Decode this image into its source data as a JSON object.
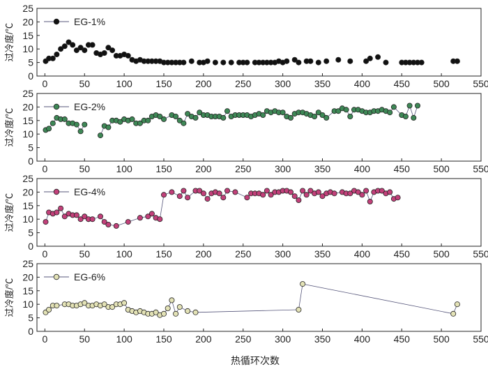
{
  "figure": {
    "xlabel": "热循环次数"
  },
  "chart_data": [
    {
      "type": "scatter",
      "legend": "EG-1%",
      "marker_color": "#111111",
      "line": false,
      "ylabel": "过冷度/℃",
      "xlim": [
        -10,
        550
      ],
      "ylim": [
        0,
        25
      ],
      "xticks": [
        0,
        50,
        100,
        150,
        200,
        250,
        300,
        350,
        400,
        450,
        500,
        550
      ],
      "yticks": [
        0,
        5,
        10,
        15,
        20,
        25
      ],
      "x": [
        1,
        5,
        10,
        15,
        20,
        25,
        30,
        35,
        40,
        45,
        50,
        55,
        60,
        65,
        70,
        75,
        80,
        85,
        90,
        95,
        100,
        105,
        110,
        115,
        120,
        125,
        130,
        135,
        140,
        145,
        150,
        155,
        160,
        165,
        170,
        175,
        185,
        195,
        200,
        205,
        215,
        225,
        235,
        245,
        250,
        255,
        265,
        270,
        275,
        280,
        285,
        290,
        295,
        300,
        305,
        315,
        320,
        330,
        335,
        345,
        355,
        370,
        385,
        405,
        410,
        420,
        430,
        450,
        455,
        460,
        465,
        470,
        475,
        515,
        520
      ],
      "y": [
        5.5,
        6.5,
        6.5,
        8,
        10,
        11,
        12.5,
        11.5,
        9.5,
        10.5,
        9.5,
        11.5,
        11.5,
        8.5,
        8,
        8.5,
        10.5,
        9.5,
        7.5,
        7.5,
        8,
        7.5,
        6,
        5.5,
        6,
        5.5,
        5.5,
        5.5,
        5.5,
        5.5,
        5,
        5,
        5,
        5,
        5,
        5,
        5.5,
        5,
        5,
        5.5,
        5,
        5,
        5,
        5,
        5,
        5,
        5,
        5,
        5,
        5,
        5,
        5,
        5.5,
        5,
        5.5,
        6,
        5,
        5.5,
        5.5,
        5,
        5.5,
        6,
        5.5,
        5.5,
        6.5,
        7,
        5,
        5,
        5,
        5,
        5,
        5,
        5,
        5.5,
        5.5
      ]
    },
    {
      "type": "scatter",
      "legend": "EG-2%",
      "marker_color": "#3e8856",
      "line": true,
      "ylabel": "过冷度/℃",
      "xlim": [
        -10,
        550
      ],
      "ylim": [
        0,
        25
      ],
      "xticks": [
        0,
        50,
        100,
        150,
        200,
        250,
        300,
        350,
        400,
        450,
        500,
        550
      ],
      "yticks": [
        0,
        5,
        10,
        15,
        20,
        25
      ],
      "x": [
        1,
        5,
        10,
        15,
        20,
        25,
        30,
        35,
        40,
        45,
        50,
        55,
        70,
        75,
        80,
        85,
        90,
        95,
        100,
        105,
        110,
        115,
        120,
        125,
        130,
        135,
        140,
        145,
        150,
        160,
        165,
        170,
        175,
        180,
        185,
        190,
        195,
        200,
        205,
        210,
        215,
        220,
        225,
        230,
        235,
        240,
        245,
        250,
        255,
        260,
        265,
        270,
        275,
        280,
        285,
        290,
        295,
        300,
        305,
        310,
        315,
        320,
        325,
        330,
        335,
        340,
        345,
        350,
        355,
        365,
        370,
        375,
        380,
        385,
        390,
        395,
        400,
        405,
        410,
        415,
        420,
        425,
        430,
        435,
        440,
        450,
        455,
        460,
        465,
        470
      ],
      "y": [
        11.5,
        12,
        14,
        16,
        15.5,
        15.5,
        14,
        14,
        13.5,
        11,
        13.5,
        null,
        9.5,
        13,
        12.5,
        15,
        15,
        14.5,
        15.5,
        15,
        15.5,
        14,
        14,
        15,
        15,
        16.5,
        17,
        16.5,
        15.5,
        17,
        16.5,
        15,
        14,
        17.5,
        16.5,
        16,
        18,
        17,
        17,
        16.5,
        16.5,
        16.5,
        16,
        18.5,
        16.5,
        17,
        17,
        17,
        17,
        16.5,
        17,
        17.5,
        17,
        18.5,
        18,
        18.5,
        18,
        18,
        16.5,
        16,
        17.5,
        18,
        18,
        17.5,
        17,
        16.5,
        18,
        17,
        16,
        18.5,
        18.5,
        19.5,
        19,
        16.5,
        19,
        19,
        18.5,
        18,
        18,
        18.5,
        18.5,
        19,
        18.5,
        18,
        20,
        17,
        16.5,
        20.5,
        16,
        20.5
      ]
    },
    {
      "type": "scatter",
      "legend": "EG-4%",
      "marker_color": "#c2407a",
      "line": true,
      "ylabel": "过冷度/℃",
      "xlim": [
        -10,
        550
      ],
      "ylim": [
        0,
        25
      ],
      "xticks": [
        0,
        50,
        100,
        150,
        200,
        250,
        300,
        350,
        400,
        450,
        500,
        550
      ],
      "yticks": [
        0,
        5,
        10,
        15,
        20,
        25
      ],
      "x": [
        1,
        5,
        10,
        15,
        20,
        25,
        30,
        35,
        40,
        45,
        50,
        55,
        60,
        70,
        75,
        80,
        90,
        105,
        120,
        130,
        135,
        140,
        145,
        150,
        160,
        170,
        175,
        180,
        190,
        195,
        200,
        205,
        210,
        215,
        220,
        225,
        230,
        240,
        255,
        260,
        265,
        270,
        275,
        280,
        285,
        290,
        295,
        300,
        305,
        310,
        315,
        320,
        325,
        330,
        335,
        340,
        345,
        350,
        355,
        360,
        365,
        375,
        380,
        385,
        390,
        395,
        400,
        405,
        410,
        415,
        420,
        425,
        430,
        435,
        440,
        445
      ],
      "y": [
        9,
        12.5,
        12,
        12.5,
        14,
        11,
        12,
        11.5,
        11.5,
        10,
        11,
        10,
        10,
        11,
        9,
        8,
        7.5,
        9,
        10.5,
        11,
        12,
        10.5,
        10,
        19,
        20,
        18.5,
        20.5,
        18,
        20.5,
        20.5,
        19.5,
        17.5,
        19.5,
        20,
        19.5,
        18,
        20.5,
        20,
        18,
        19.5,
        19.5,
        19.5,
        19,
        20.5,
        19,
        20,
        20,
        20.5,
        20.5,
        20,
        18.5,
        17,
        20.5,
        19,
        20.5,
        19.5,
        20,
        18.5,
        19.5,
        20,
        19.5,
        20,
        19.5,
        19.5,
        20.5,
        20,
        19,
        20.5,
        16.5,
        20,
        20.5,
        20.5,
        19.5,
        20,
        17.5,
        18
      ]
    },
    {
      "type": "scatter",
      "legend": "EG-6%",
      "marker_color": "#e3e2b6",
      "line": true,
      "ylabel": "过冷度/℃",
      "xlim": [
        -10,
        550
      ],
      "ylim": [
        0,
        25
      ],
      "xticks": [
        0,
        50,
        100,
        150,
        200,
        250,
        300,
        350,
        400,
        450,
        500,
        550
      ],
      "yticks": [
        0,
        5,
        10,
        15,
        20,
        25
      ],
      "x": [
        1,
        5,
        10,
        15,
        25,
        30,
        35,
        40,
        45,
        50,
        55,
        60,
        65,
        70,
        75,
        80,
        85,
        90,
        95,
        100,
        105,
        110,
        115,
        120,
        125,
        130,
        135,
        140,
        145,
        150,
        155,
        160,
        165,
        170,
        180,
        190,
        320,
        325,
        515,
        520
      ],
      "y": [
        7,
        8,
        9.5,
        9.5,
        10,
        10,
        9.5,
        9.5,
        10,
        10.5,
        9.5,
        9.5,
        10,
        9.5,
        10,
        9,
        9,
        10,
        10,
        10.5,
        8,
        7.5,
        7,
        7.5,
        7,
        6.5,
        6.5,
        7,
        6,
        6.5,
        8.5,
        11.5,
        6.5,
        9,
        7.5,
        7,
        8,
        17.5,
        6.5,
        10
      ]
    }
  ]
}
